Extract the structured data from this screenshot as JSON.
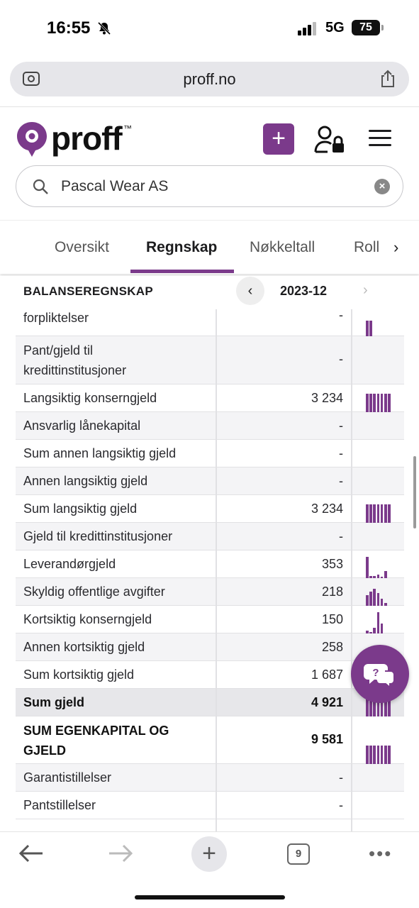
{
  "status_bar": {
    "time": "16:55",
    "network": "5G",
    "battery": "75"
  },
  "browser": {
    "url": "proff.no",
    "tab_count": "9"
  },
  "header": {
    "logo_text": "proff",
    "logo_tm": "™",
    "add_label": "+"
  },
  "search": {
    "value": "Pascal Wear AS"
  },
  "tabs": {
    "items": [
      "Oversikt",
      "Regnskap",
      "Nøkkeltall",
      "Roll"
    ],
    "active": "Regnskap"
  },
  "section": {
    "title": "BALANSEREGNSKAP",
    "period": "2023-12"
  },
  "rows": [
    {
      "label": "forpliktelser",
      "value": "-",
      "spark": "bars2"
    },
    {
      "label": "Pant/gjeld til kredittinstitusjoner",
      "value": "-",
      "spark": ""
    },
    {
      "label": "Langsiktig konserngjeld",
      "value": "3 234",
      "spark": "full"
    },
    {
      "label": "Ansvarlig lånekapital",
      "value": "-",
      "spark": ""
    },
    {
      "label": "Sum annen langsiktig gjeld",
      "value": "-",
      "spark": ""
    },
    {
      "label": "Annen langsiktig gjeld",
      "value": "-",
      "spark": ""
    },
    {
      "label": "Sum langsiktig gjeld",
      "value": "3 234",
      "spark": "full"
    },
    {
      "label": "Gjeld til kredittinstitusjoner",
      "value": "-",
      "spark": ""
    },
    {
      "label": "Leverandørgjeld",
      "value": "353",
      "spark": "lev"
    },
    {
      "label": "Skyldig offentlige avgifter",
      "value": "218",
      "spark": "sko"
    },
    {
      "label": "Kortsiktig konserngjeld",
      "value": "150",
      "spark": "kor"
    },
    {
      "label": "Annen kortsiktig gjeld",
      "value": "258",
      "spark": "ann"
    },
    {
      "label": "Sum kortsiktig gjeld",
      "value": "1 687",
      "spark": ""
    },
    {
      "label": "Sum gjeld",
      "value": "4 921",
      "spark": "full"
    },
    {
      "label": "SUM EGENKAPITAL OG GJELD",
      "value": "9 581",
      "spark": "full"
    },
    {
      "label": "Garantistillelser",
      "value": "-",
      "spark": ""
    },
    {
      "label": "Pantstillelser",
      "value": "-",
      "spark": ""
    }
  ],
  "colors": {
    "brand": "#7b3a8b"
  }
}
